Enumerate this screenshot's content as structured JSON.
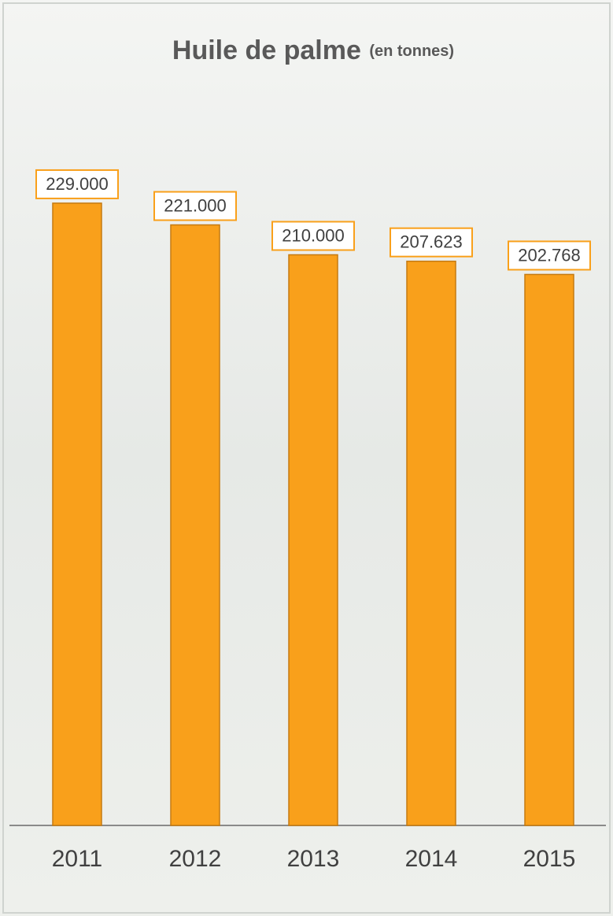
{
  "chart_data": {
    "type": "bar",
    "title": "Huile de palme",
    "subtitle": "(en tonnes)",
    "categories": [
      "2011",
      "2012",
      "2013",
      "2014",
      "2015"
    ],
    "values": [
      229000,
      221000,
      210000,
      207623,
      202768
    ],
    "value_labels": [
      "229.000",
      "221.000",
      "210.000",
      "207.623",
      "202.768"
    ],
    "color": "#f9a01b",
    "ylim": [
      0,
      240000
    ]
  }
}
